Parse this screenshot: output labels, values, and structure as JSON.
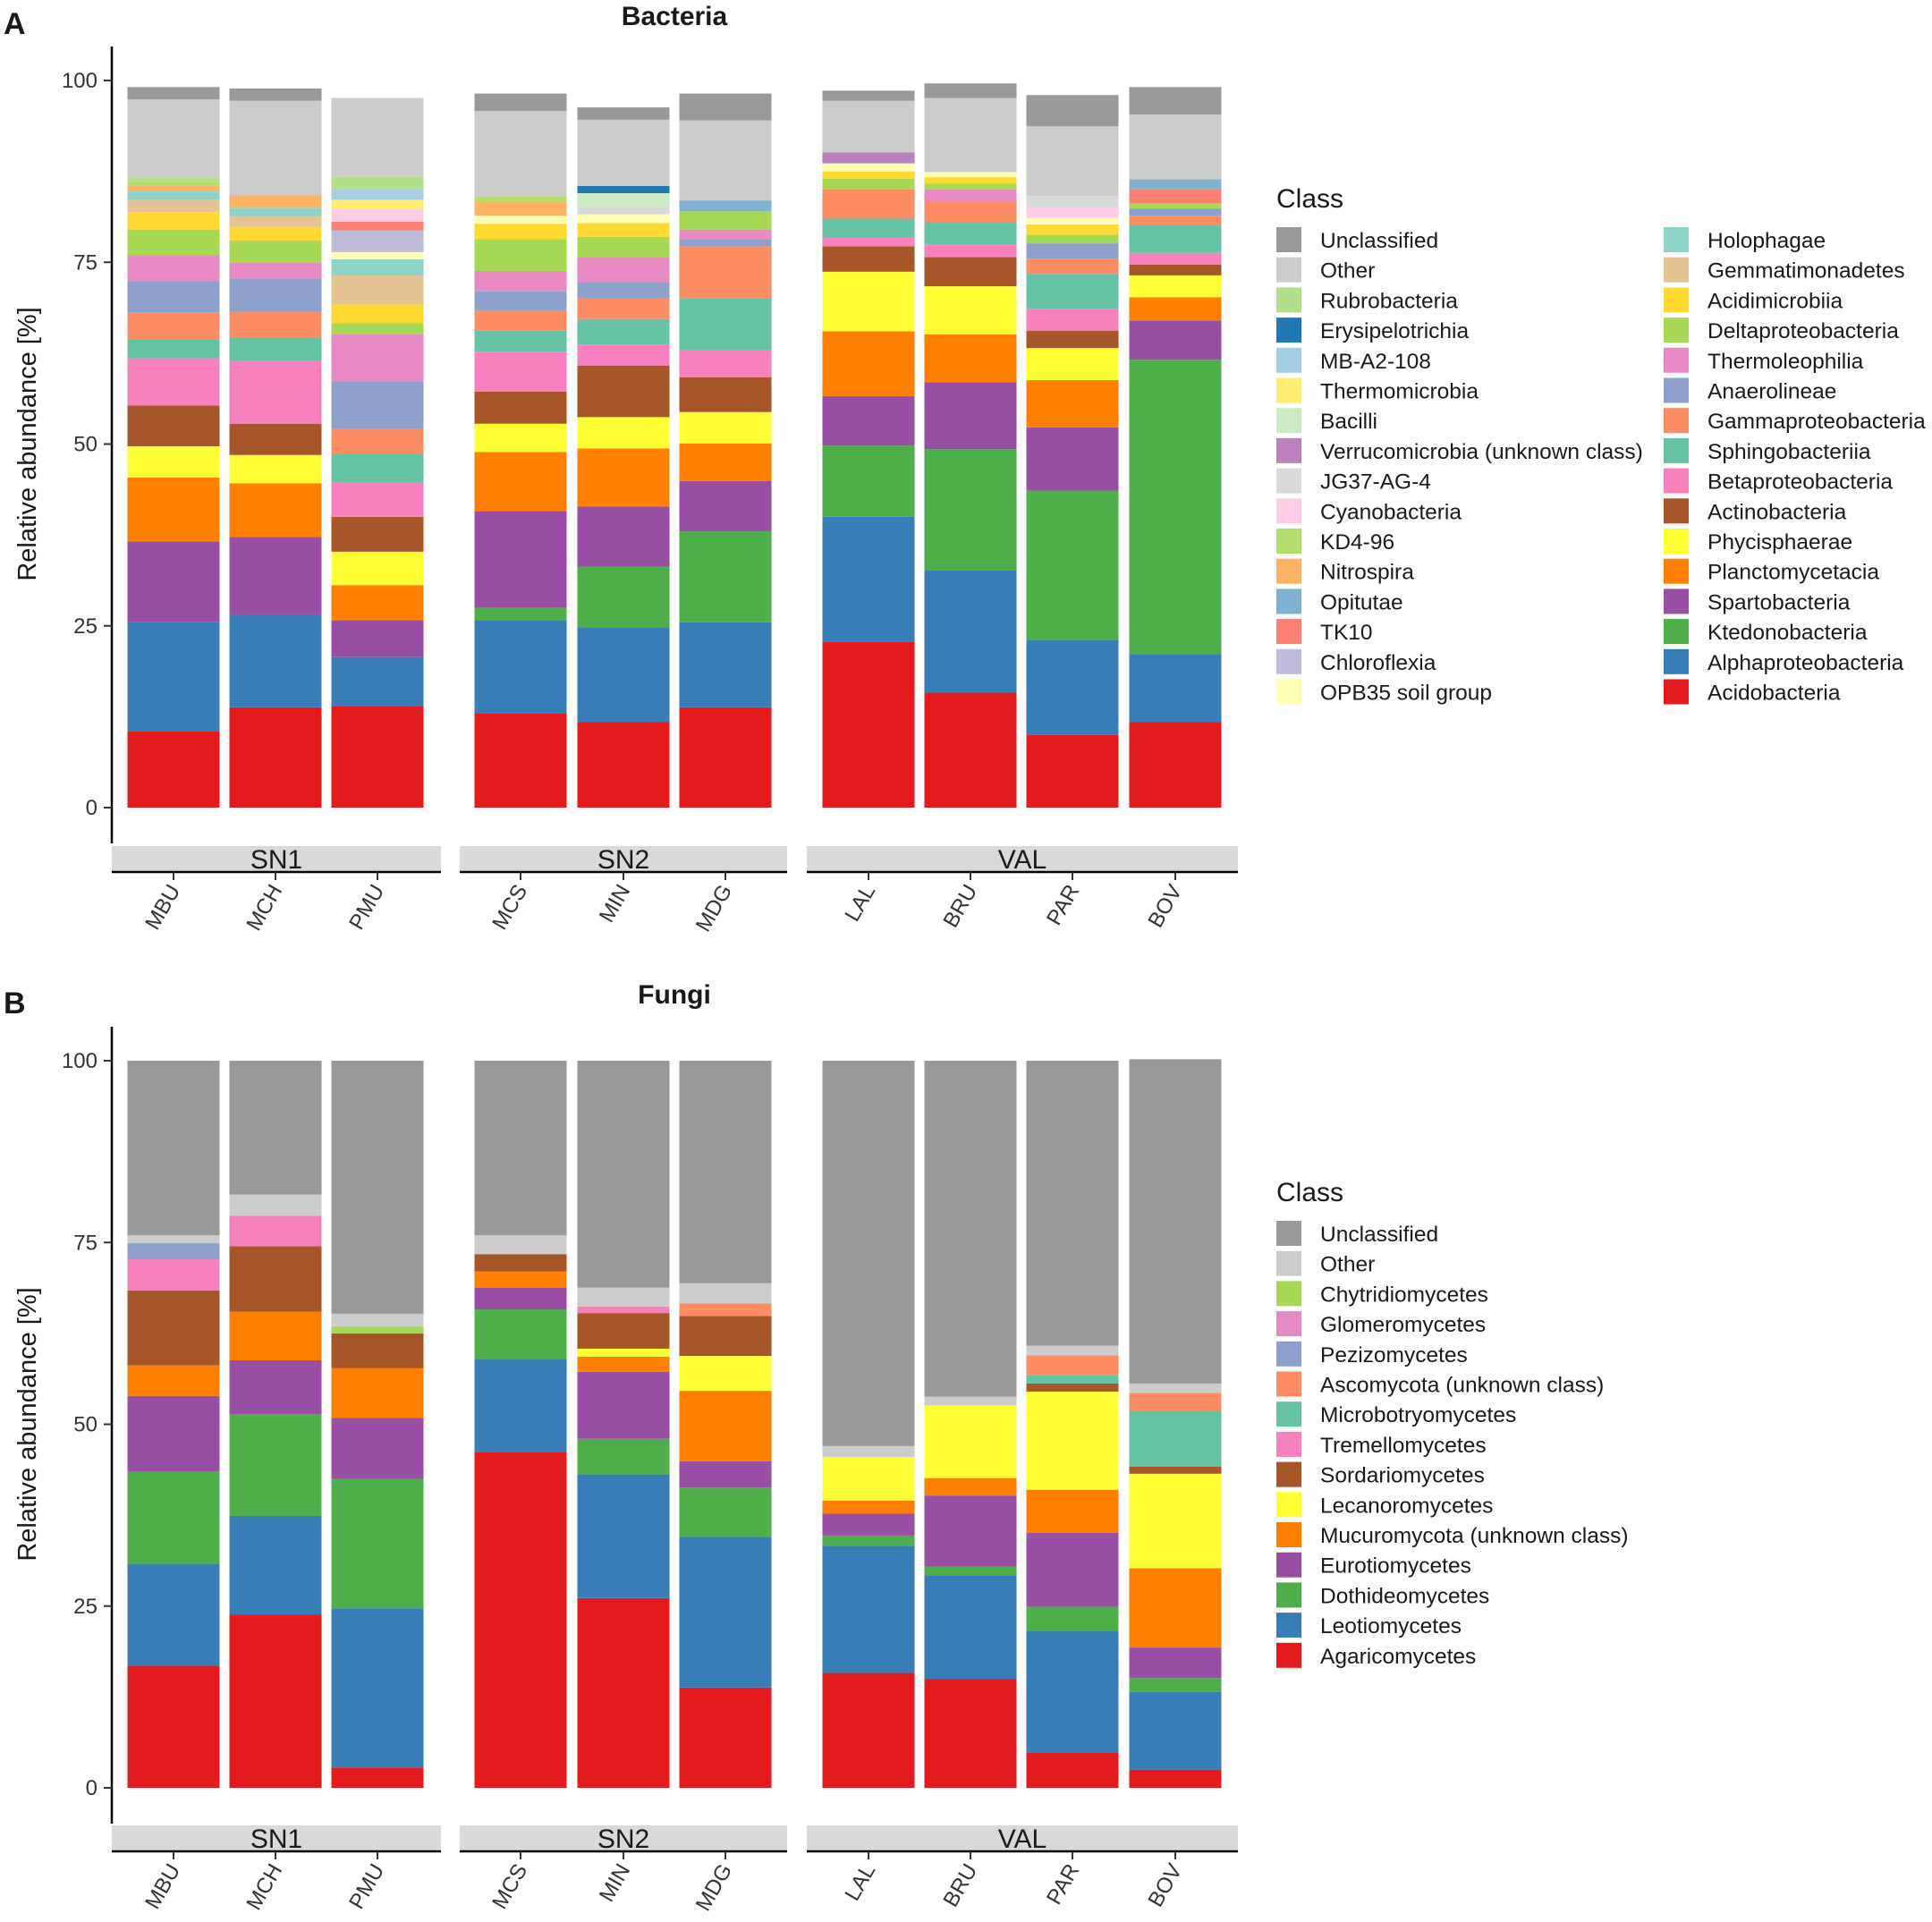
{
  "panels": [
    {
      "id": "A",
      "letter": "A",
      "chart_data": {
        "type": "bar",
        "stacked": true,
        "title": "Bacteria",
        "ylabel": "Relative abundance [%]",
        "xlabel": "",
        "ylim": [
          0,
          100
        ],
        "yticks": [
          0,
          25,
          50,
          75,
          100
        ],
        "groups": [
          {
            "name": "SN1",
            "samples": [
              "MBU",
              "MCH",
              "PMU"
            ]
          },
          {
            "name": "SN2",
            "samples": [
              "MCS",
              "MIN",
              "MDG"
            ]
          },
          {
            "name": "VAL",
            "samples": [
              "LAL",
              "BRU",
              "PAR",
              "BOV"
            ]
          }
        ],
        "categories": [
          "MBU",
          "MCH",
          "PMU",
          "MCS",
          "MIN",
          "MDG",
          "LAL",
          "BRU",
          "PAR",
          "BOV"
        ],
        "legend_title": "Class",
        "legend_columns": [
          [
            "Unclassified",
            "Other",
            "Rubrobacteria",
            "Erysipelotrichia",
            "MB-A2-108",
            "Thermomicrobia",
            "Bacilli",
            "Verrucomicrobia (unknown class)",
            "JG37-AG-4",
            "Cyanobacteria",
            "KD4-96",
            "Nitrospira",
            "Opitutae",
            "TK10",
            "Chloroflexia",
            "OPB35 soil group"
          ],
          [
            "Holophagae",
            "Gemmatimonadetes",
            "Acidimicrobiia",
            "Deltaproteobacteria",
            "Thermoleophilia",
            "Anaerolineae",
            "Gammaproteobacteria",
            "Sphingobacteriia",
            "Betaproteobacteria",
            "Actinobacteria",
            "Phycisphaerae",
            "Planctomycetacia",
            "Spartobacteria",
            "Ktedonobacteria",
            "Alphaproteobacteria",
            "Acidobacteria"
          ]
        ],
        "series": [
          {
            "name": "Acidobacteria",
            "color": "#e41a1c",
            "values": [
              10.5,
              13.8,
              14.0,
              13.0,
              11.8,
              13.8,
              22.8,
              15.8,
              10.0,
              11.8
            ]
          },
          {
            "name": "Alphaproteobacteria",
            "color": "#377eb8",
            "values": [
              15.0,
              12.7,
              6.7,
              12.8,
              13.0,
              11.7,
              17.2,
              16.8,
              13.0,
              9.3
            ]
          },
          {
            "name": "Ktedonobacteria",
            "color": "#4daf4a",
            "values": [
              0.0,
              0.0,
              0.0,
              1.7,
              8.3,
              12.5,
              9.8,
              16.7,
              20.6,
              40.5
            ]
          },
          {
            "name": "Spartobacteria",
            "color": "#984ea3",
            "values": [
              11.1,
              10.7,
              5.1,
              13.3,
              8.3,
              6.9,
              6.8,
              9.2,
              8.7,
              5.4
            ]
          },
          {
            "name": "Planctomycetacia",
            "color": "#ff7f00",
            "values": [
              8.8,
              7.4,
              4.8,
              8.1,
              8.0,
              5.2,
              8.9,
              6.6,
              6.5,
              3.2
            ]
          },
          {
            "name": "Phycisphaerae",
            "color": "#ffff33",
            "values": [
              4.3,
              3.9,
              4.6,
              3.9,
              4.3,
              4.3,
              8.2,
              6.6,
              4.4,
              3.0
            ]
          },
          {
            "name": "Actinobacteria",
            "color": "#a65628",
            "values": [
              5.6,
              4.3,
              4.8,
              4.4,
              7.1,
              4.8,
              3.5,
              4.0,
              2.4,
              1.5
            ]
          },
          {
            "name": "Betaproteobacteria",
            "color": "#f781bf",
            "values": [
              6.5,
              8.6,
              4.7,
              5.5,
              2.9,
              3.7,
              1.2,
              1.7,
              3.0,
              1.6
            ]
          },
          {
            "name": "Sphingobacteriia",
            "color": "#66c2a5",
            "values": [
              2.6,
              3.3,
              4.0,
              2.9,
              3.5,
              7.1,
              2.6,
              3.1,
              4.8,
              3.9
            ]
          },
          {
            "name": "Gammaproteobacteria",
            "color": "#fc8d62",
            "values": [
              3.7,
              3.5,
              3.4,
              2.8,
              2.8,
              7.2,
              4.0,
              2.9,
              2.1,
              1.2
            ]
          },
          {
            "name": "Anaerolineae",
            "color": "#8da0cb",
            "values": [
              4.3,
              4.5,
              6.5,
              2.6,
              2.2,
              1.0,
              0.0,
              0.0,
              2.1,
              1.0
            ]
          },
          {
            "name": "Thermoleophilia",
            "color": "#e78ac3",
            "values": [
              3.6,
              2.3,
              6.5,
              2.8,
              3.5,
              1.3,
              0.0,
              1.6,
              0.0,
              0.0
            ]
          },
          {
            "name": "Deltaproteobacteria",
            "color": "#a6d854",
            "values": [
              3.5,
              3.0,
              1.5,
              4.4,
              2.8,
              2.5,
              1.5,
              0.8,
              1.2,
              0.7
            ]
          },
          {
            "name": "Acidimicrobiia",
            "color": "#ffd92f",
            "values": [
              2.4,
              1.8,
              2.6,
              2.1,
              1.9,
              0.0,
              1.0,
              0.9,
              1.4,
              0.0
            ]
          },
          {
            "name": "Gemmatimonadetes",
            "color": "#e5c494",
            "values": [
              1.7,
              1.5,
              4.0,
              0.0,
              0.0,
              0.0,
              0.0,
              0.0,
              0.0,
              0.0
            ]
          },
          {
            "name": "Holophagae",
            "color": "#8dd3c7",
            "values": [
              1.2,
              1.2,
              2.2,
              0.0,
              0.0,
              0.0,
              0.0,
              0.0,
              0.0,
              0.0
            ]
          },
          {
            "name": "OPB35 soil group",
            "color": "#ffffb3",
            "values": [
              0.0,
              0.0,
              1.0,
              1.1,
              1.2,
              0.0,
              1.1,
              0.7,
              0.9,
              0.0
            ]
          },
          {
            "name": "Chloroflexia",
            "color": "#bebada",
            "values": [
              0.0,
              0.0,
              3.0,
              0.0,
              0.0,
              0.0,
              0.0,
              0.0,
              0.0,
              0.0
            ]
          },
          {
            "name": "TK10",
            "color": "#fb8072",
            "values": [
              0.0,
              0.0,
              1.2,
              0.0,
              0.0,
              0.0,
              0.0,
              0.0,
              0.0,
              2.0
            ]
          },
          {
            "name": "Opitutae",
            "color": "#80b1d3",
            "values": [
              0.0,
              0.0,
              0.0,
              0.0,
              0.0,
              1.5,
              0.0,
              0.0,
              0.0,
              1.3
            ]
          },
          {
            "name": "Nitrospira",
            "color": "#fdb462",
            "values": [
              0.7,
              1.7,
              0.0,
              2.0,
              0.0,
              0.0,
              0.0,
              0.0,
              0.0,
              0.0
            ]
          },
          {
            "name": "KD4-96",
            "color": "#b3de69",
            "values": [
              0.5,
              0.0,
              0.0,
              0.7,
              0.0,
              0.0,
              0.0,
              0.0,
              0.0,
              0.0
            ]
          },
          {
            "name": "Cyanobacteria",
            "color": "#fccde5",
            "values": [
              0.0,
              0.0,
              1.8,
              0.0,
              0.0,
              0.0,
              0.0,
              0.0,
              1.5,
              0.0
            ]
          },
          {
            "name": "JG37-AG-4",
            "color": "#d9d9d9",
            "values": [
              0.0,
              0.0,
              0.0,
              0.0,
              1.0,
              0.0,
              0.0,
              0.0,
              1.5,
              0.0
            ]
          },
          {
            "name": "Verrucomicrobia (unknown class)",
            "color": "#bc80bd",
            "values": [
              0.0,
              0.0,
              0.0,
              0.0,
              0.0,
              0.0,
              1.5,
              0.0,
              0.0,
              0.0
            ]
          },
          {
            "name": "Bacilli",
            "color": "#ccebc5",
            "values": [
              0.0,
              0.0,
              0.0,
              0.0,
              1.9,
              0.0,
              0.0,
              0.0,
              0.0,
              0.0
            ]
          },
          {
            "name": "Thermomicrobia",
            "color": "#ffed6f",
            "values": [
              0.0,
              0.0,
              1.2,
              0.0,
              0.0,
              0.0,
              0.0,
              0.0,
              0.0,
              0.0
            ]
          },
          {
            "name": "MB-A2-108",
            "color": "#a6cee3",
            "values": [
              0.0,
              0.0,
              1.4,
              0.0,
              0.0,
              0.0,
              0.0,
              0.0,
              0.0,
              0.0
            ]
          },
          {
            "name": "Erysipelotrichia",
            "color": "#1f78b4",
            "values": [
              0.0,
              0.0,
              0.0,
              0.0,
              1.0,
              0.0,
              0.0,
              0.0,
              0.0,
              0.0
            ]
          },
          {
            "name": "Rubrobacteria",
            "color": "#b2df8a",
            "values": [
              0.7,
              0.0,
              1.8,
              0.0,
              0.0,
              0.0,
              0.0,
              0.0,
              0.0,
              0.0
            ]
          },
          {
            "name": "Other",
            "color": "#cccccc",
            "values": [
              10.7,
              13.0,
              10.8,
              11.7,
              9.1,
              11.0,
              7.1,
              10.2,
              9.6,
              8.9
            ]
          },
          {
            "name": "Unclassified",
            "color": "#999999",
            "values": [
              1.7,
              1.7,
              0.0,
              2.4,
              1.7,
              3.7,
              1.4,
              2.0,
              4.3,
              3.8
            ]
          }
        ]
      }
    },
    {
      "id": "B",
      "letter": "B",
      "chart_data": {
        "type": "bar",
        "stacked": true,
        "title": "Fungi",
        "ylabel": "Relative abundance [%]",
        "xlabel": "",
        "ylim": [
          0,
          100
        ],
        "yticks": [
          0,
          25,
          50,
          75,
          100
        ],
        "groups": [
          {
            "name": "SN1",
            "samples": [
              "MBU",
              "MCH",
              "PMU"
            ]
          },
          {
            "name": "SN2",
            "samples": [
              "MCS",
              "MIN",
              "MDG"
            ]
          },
          {
            "name": "VAL",
            "samples": [
              "LAL",
              "BRU",
              "PAR",
              "BOV"
            ]
          }
        ],
        "categories": [
          "MBU",
          "MCH",
          "PMU",
          "MCS",
          "MIN",
          "MDG",
          "LAL",
          "BRU",
          "PAR",
          "BOV"
        ],
        "legend_title": "Class",
        "legend_columns": [
          [
            "Unclassified",
            "Other",
            "Chytridiomycetes",
            "Glomeromycetes",
            "Pezizomycetes",
            "Ascomycota (unknown class)",
            "Microbotryomycetes",
            "Tremellomycetes",
            "Sordariomycetes",
            "Lecanoromycetes",
            "Mucuromycota (unknown class)",
            "Eurotiomycetes",
            "Dothideomycetes",
            "Leotiomycetes",
            "Agaricomycetes"
          ]
        ],
        "series": [
          {
            "name": "Agaricomycetes",
            "color": "#e41a1c",
            "values": [
              16.8,
              23.8,
              2.8,
              46.2,
              26.1,
              13.8,
              15.8,
              15.0,
              4.8,
              2.5
            ]
          },
          {
            "name": "Leotiomycetes",
            "color": "#377eb8",
            "values": [
              14.0,
              13.6,
              21.9,
              12.8,
              17.0,
              20.7,
              17.5,
              14.2,
              16.8,
              10.7
            ]
          },
          {
            "name": "Dothideomycetes",
            "color": "#4daf4a",
            "values": [
              12.7,
              14.0,
              17.8,
              6.8,
              4.9,
              6.8,
              1.4,
              1.2,
              3.3,
              1.9
            ]
          },
          {
            "name": "Eurotiomycetes",
            "color": "#984ea3",
            "values": [
              10.4,
              7.4,
              8.4,
              3.0,
              9.2,
              3.6,
              3.0,
              9.8,
              10.2,
              4.2
            ]
          },
          {
            "name": "Mucuromycota (unknown class)",
            "color": "#ff7f00",
            "values": [
              4.2,
              6.7,
              6.8,
              2.2,
              2.1,
              9.7,
              1.8,
              2.4,
              5.9,
              10.9
            ]
          },
          {
            "name": "Lecanoromycetes",
            "color": "#ffff33",
            "values": [
              0.0,
              0.0,
              0.0,
              0.0,
              1.1,
              4.8,
              6.0,
              10.0,
              13.5,
              13.0
            ]
          },
          {
            "name": "Sordariomycetes",
            "color": "#a65628",
            "values": [
              10.3,
              9.0,
              4.8,
              2.4,
              4.9,
              5.5,
              0.0,
              0.0,
              1.1,
              1.0
            ]
          },
          {
            "name": "Tremellomycetes",
            "color": "#f781bf",
            "values": [
              4.3,
              4.2,
              0.0,
              0.0,
              0.9,
              0.0,
              0.0,
              0.0,
              0.0,
              0.0
            ]
          },
          {
            "name": "Microbotryomycetes",
            "color": "#66c2a5",
            "values": [
              0.0,
              0.0,
              0.0,
              0.0,
              0.0,
              0.0,
              0.0,
              0.0,
              1.2,
              7.7
            ]
          },
          {
            "name": "Ascomycota (unknown class)",
            "color": "#fc8d62",
            "values": [
              0.0,
              0.0,
              0.0,
              0.0,
              0.0,
              1.7,
              0.0,
              0.0,
              2.7,
              2.4
            ]
          },
          {
            "name": "Pezizomycetes",
            "color": "#8da0cb",
            "values": [
              2.2,
              0.0,
              0.0,
              0.0,
              0.0,
              0.0,
              0.0,
              0.0,
              0.0,
              0.0
            ]
          },
          {
            "name": "Glomeromycetes",
            "color": "#e78ac3",
            "values": [
              0.0,
              0.0,
              0.0,
              0.0,
              0.0,
              0.0,
              0.0,
              0.0,
              0.0,
              0.0
            ]
          },
          {
            "name": "Chytridiomycetes",
            "color": "#a6d854",
            "values": [
              0.0,
              0.0,
              1.0,
              0.0,
              0.0,
              0.0,
              0.0,
              0.0,
              0.0,
              0.0
            ]
          },
          {
            "name": "Other",
            "color": "#cccccc",
            "values": [
              1.1,
              2.9,
              1.7,
              2.6,
              2.6,
              2.8,
              1.5,
              1.2,
              1.3,
              1.3
            ]
          },
          {
            "name": "Unclassified",
            "color": "#999999",
            "values": [
              24.0,
              18.4,
              34.8,
              24.0,
              31.2,
              30.6,
              53.0,
              46.2,
              39.2,
              44.6
            ]
          }
        ]
      }
    }
  ]
}
